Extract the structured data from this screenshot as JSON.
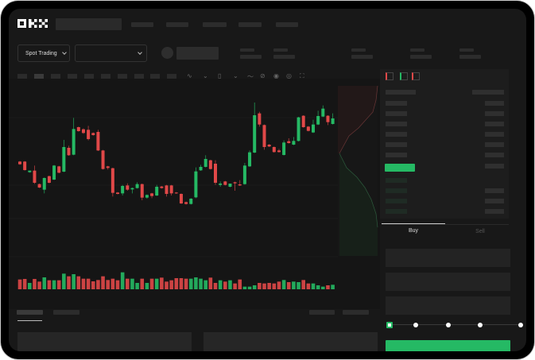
{
  "header": {
    "logo": "OKX"
  },
  "toolbar": {
    "market_selector": "Spot Trading"
  },
  "order_form": {
    "tabs": [
      {
        "label": "Buy",
        "active": true
      },
      {
        "label": "Sell",
        "active": false
      }
    ],
    "slider_percent": 0
  },
  "colors": {
    "up": "#25b964",
    "down": "#e04848",
    "background": "#181818",
    "panel": "#1d1d1d"
  },
  "chart_data": {
    "type": "candlestick",
    "candles": [
      [
        750,
        752,
        738,
        740
      ],
      [
        750,
        752,
        716,
        718
      ],
      [
        710,
        716,
        708,
        716
      ],
      [
        716,
        735,
        666,
        670
      ],
      [
        665,
        667,
        650,
        652
      ],
      [
        644,
        690,
        630,
        688
      ],
      [
        695,
        697,
        668,
        670
      ],
      [
        682,
        737,
        680,
        735
      ],
      [
        732,
        734,
        706,
        708
      ],
      [
        712,
        832,
        710,
        805
      ],
      [
        802,
        810,
        772,
        774
      ],
      [
        776,
        915,
        774,
        873
      ],
      [
        880,
        882,
        863,
        865
      ],
      [
        872,
        875,
        855,
        858
      ],
      [
        870,
        885,
        830,
        835
      ],
      [
        858,
        860,
        848,
        850
      ],
      [
        862,
        870,
        790,
        792
      ],
      [
        792,
        794,
        720,
        722
      ],
      [
        732,
        734,
        720,
        726
      ],
      [
        725,
        727,
        618,
        632
      ],
      [
        633,
        635,
        626,
        628
      ],
      [
        630,
        662,
        622,
        658
      ],
      [
        660,
        668,
        640,
        644
      ],
      [
        645,
        652,
        630,
        650
      ],
      [
        650,
        672,
        648,
        665
      ],
      [
        665,
        667,
        604,
        614
      ],
      [
        614,
        626,
        610,
        624
      ],
      [
        630,
        632,
        612,
        620
      ],
      [
        622,
        662,
        620,
        655
      ],
      [
        656,
        658,
        648,
        650
      ],
      [
        660,
        662,
        618,
        628
      ],
      [
        660,
        662,
        622,
        630
      ],
      [
        633,
        635,
        628,
        630
      ],
      [
        628,
        630,
        590,
        592
      ],
      [
        597,
        599,
        588,
        590
      ],
      [
        590,
        612,
        588,
        610
      ],
      [
        615,
        728,
        612,
        713
      ],
      [
        717,
        738,
        715,
        730
      ],
      [
        730,
        774,
        728,
        760
      ],
      [
        755,
        757,
        720,
        722
      ],
      [
        742,
        755,
        662,
        670
      ],
      [
        662,
        675,
        655,
        667
      ],
      [
        675,
        677,
        660,
        662
      ],
      [
        655,
        667,
        653,
        667
      ],
      [
        672,
        674,
        640,
        668
      ],
      [
        664,
        680,
        658,
        660
      ],
      [
        665,
        745,
        663,
        735
      ],
      [
        732,
        792,
        730,
        785
      ],
      [
        784,
        973,
        782,
        925
      ],
      [
        932,
        938,
        882,
        890
      ],
      [
        888,
        890,
        795,
        805
      ],
      [
        814,
        816,
        805,
        807
      ],
      [
        805,
        807,
        784,
        786
      ],
      [
        792,
        798,
        784,
        786
      ],
      [
        775,
        830,
        773,
        822
      ],
      [
        827,
        838,
        818,
        820
      ],
      [
        814,
        843,
        812,
        828
      ],
      [
        828,
        919,
        826,
        917
      ],
      [
        923,
        925,
        878,
        880
      ],
      [
        882,
        884,
        864,
        866
      ],
      [
        860,
        908,
        858,
        890
      ],
      [
        890,
        942,
        888,
        922
      ],
      [
        920,
        962,
        918,
        950
      ],
      [
        923,
        925,
        888,
        899
      ],
      [
        892,
        932,
        890,
        913
      ]
    ],
    "volume": [
      37,
      39,
      24,
      39,
      29,
      45,
      34,
      34,
      34,
      59,
      49,
      57,
      49,
      40,
      40,
      30,
      35,
      49,
      35,
      40,
      34,
      64,
      40,
      40,
      24,
      40,
      24,
      40,
      40,
      44,
      29,
      34,
      42,
      42,
      40,
      40,
      45,
      40,
      34,
      44,
      24,
      34,
      29,
      34,
      22,
      37,
      10,
      10,
      15,
      24,
      22,
      24,
      22,
      29,
      35,
      27,
      29,
      27,
      35,
      22,
      22,
      15,
      10,
      15,
      17
    ],
    "grid": true
  }
}
